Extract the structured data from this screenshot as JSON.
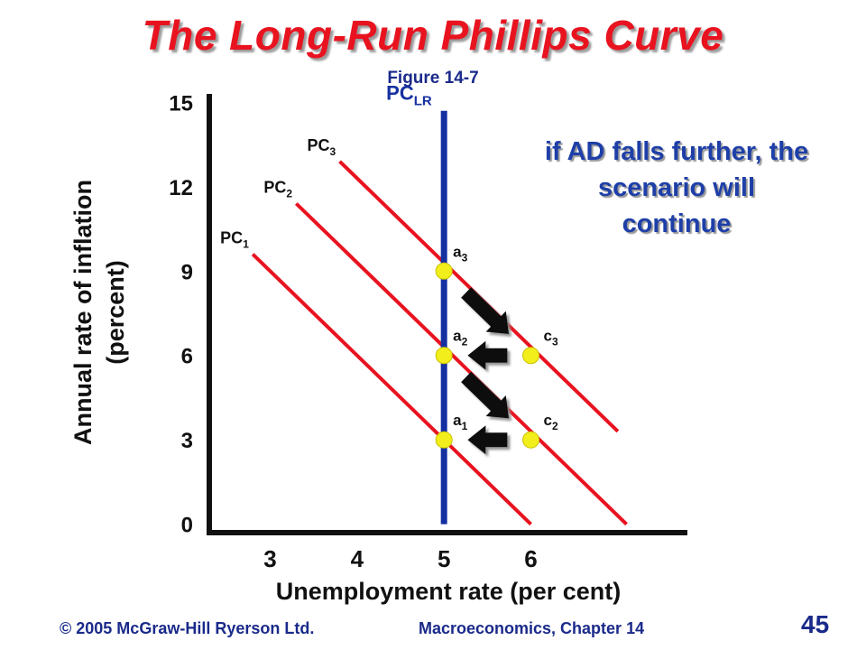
{
  "slide": {
    "title": "The Long-Run Phillips Curve",
    "figure_label": "Figure 14-7",
    "annotation_lines": [
      "if AD falls further, the",
      "scenario will",
      "continue"
    ],
    "footer_left": "© 2005 McGraw-Hill Ryerson Ltd.",
    "footer_right": "Macroeconomics, Chapter 14",
    "page_number": "45",
    "colors": {
      "title": "#e8131f",
      "curves": "#e8131f",
      "lrpc": "#1530a0",
      "points": "#f2ee1b",
      "text_blue": "#1a2a8a"
    }
  },
  "chart_data": {
    "type": "line",
    "xlabel": "Unemployment rate (per cent)",
    "ylabel_lines": [
      "Annual rate of inflation",
      "(percent)"
    ],
    "x_ticks": [
      3,
      4,
      5,
      6
    ],
    "y_ticks": [
      0,
      3,
      6,
      9,
      12,
      15
    ],
    "xlim": [
      2.3,
      7.8
    ],
    "ylim": [
      -0.3,
      15.3
    ],
    "series": [
      {
        "name": "PC1",
        "label_main": "PC",
        "label_sub": "1",
        "x": [
          2.8,
          6.0
        ],
        "y": [
          9.6,
          0.0
        ]
      },
      {
        "name": "PC2",
        "label_main": "PC",
        "label_sub": "2",
        "x": [
          3.3,
          7.1
        ],
        "y": [
          11.4,
          0.0
        ]
      },
      {
        "name": "PC3",
        "label_main": "PC",
        "label_sub": "3",
        "x": [
          3.8,
          7.0
        ],
        "y": [
          12.9,
          3.3
        ]
      }
    ],
    "vertical_lines": [
      {
        "name": "PCLR",
        "label_main": "PC",
        "label_sub": "LR",
        "x": 5.0,
        "y": [
          0.0,
          14.7
        ]
      }
    ],
    "points": [
      {
        "label_main": "a",
        "label_sub": "1",
        "x": 5.0,
        "y": 3.0
      },
      {
        "label_main": "a",
        "label_sub": "2",
        "x": 5.0,
        "y": 6.0
      },
      {
        "label_main": "a",
        "label_sub": "3",
        "x": 5.0,
        "y": 9.0
      },
      {
        "label_main": "c",
        "label_sub": "2",
        "x": 6.0,
        "y": 3.0
      },
      {
        "label_main": "c",
        "label_sub": "3",
        "x": 6.0,
        "y": 6.0
      }
    ],
    "arrows": [
      {
        "from": [
          5.0,
          9.0
        ],
        "to": [
          6.0,
          6.0
        ]
      },
      {
        "from": [
          6.0,
          6.0
        ],
        "to": [
          5.0,
          6.0
        ]
      },
      {
        "from": [
          5.0,
          6.0
        ],
        "to": [
          6.0,
          3.0
        ]
      },
      {
        "from": [
          6.0,
          3.0
        ],
        "to": [
          5.0,
          3.0
        ]
      }
    ],
    "grid": false,
    "legend": "none"
  }
}
